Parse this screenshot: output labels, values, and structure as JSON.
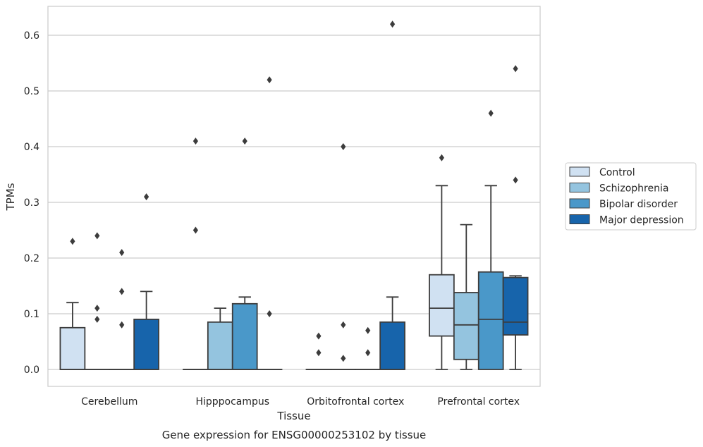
{
  "caption": "Gene expression for ENSG00000253102 by tissue",
  "chart_data": {
    "type": "boxplot",
    "title": "",
    "xlabel": "Tissue",
    "ylabel": "TPMs",
    "ylim": [
      -0.03,
      0.655
    ],
    "yticks": [
      0.0,
      0.1,
      0.2,
      0.3,
      0.4,
      0.5,
      0.6
    ],
    "ytick_labels": [
      "0.0",
      "0.1",
      "0.2",
      "0.3",
      "0.4",
      "0.5",
      "0.6"
    ],
    "grid": "horizontal",
    "legend_position": "right",
    "categories": [
      "Cerebellum",
      "Hipppocampus",
      "Orbitofrontal cortex",
      "Prefrontal cortex"
    ],
    "series": [
      {
        "name": "Control",
        "color": "#d0e1f2",
        "boxes": [
          {
            "q1": 0.0,
            "median": 0.0,
            "q3": 0.075,
            "whislo": 0.0,
            "whishi": 0.12,
            "fliers": [
              0.23
            ]
          },
          {
            "q1": 0.0,
            "median": 0.0,
            "q3": 0.0,
            "whislo": 0.0,
            "whishi": 0.0,
            "fliers": [
              0.41,
              0.25
            ]
          },
          {
            "q1": 0.0,
            "median": 0.0,
            "q3": 0.0,
            "whislo": 0.0,
            "whishi": 0.0,
            "fliers": [
              0.06,
              0.03
            ]
          },
          {
            "q1": 0.06,
            "median": 0.11,
            "q3": 0.17,
            "whislo": 0.0,
            "whishi": 0.33,
            "fliers": [
              0.38
            ]
          }
        ]
      },
      {
        "name": "Schizophrenia",
        "color": "#94c4df",
        "boxes": [
          {
            "q1": 0.0,
            "median": 0.0,
            "q3": 0.0,
            "whislo": 0.0,
            "whishi": 0.0,
            "fliers": [
              0.24,
              0.11,
              0.09
            ]
          },
          {
            "q1": 0.0,
            "median": 0.0,
            "q3": 0.085,
            "whislo": 0.0,
            "whishi": 0.11,
            "fliers": []
          },
          {
            "q1": 0.0,
            "median": 0.0,
            "q3": 0.0,
            "whislo": 0.0,
            "whishi": 0.0,
            "fliers": [
              0.4,
              0.08,
              0.02
            ]
          },
          {
            "q1": 0.018,
            "median": 0.08,
            "q3": 0.138,
            "whislo": 0.0,
            "whishi": 0.26,
            "fliers": []
          }
        ]
      },
      {
        "name": "Bipolar disorder",
        "color": "#4a98c9",
        "boxes": [
          {
            "q1": 0.0,
            "median": 0.0,
            "q3": 0.0,
            "whislo": 0.0,
            "whishi": 0.0,
            "fliers": [
              0.21,
              0.14,
              0.08
            ]
          },
          {
            "q1": 0.0,
            "median": 0.0,
            "q3": 0.118,
            "whislo": 0.0,
            "whishi": 0.13,
            "fliers": [
              0.41
            ]
          },
          {
            "q1": 0.0,
            "median": 0.0,
            "q3": 0.0,
            "whislo": 0.0,
            "whishi": 0.0,
            "fliers": [
              0.07,
              0.03
            ]
          },
          {
            "q1": 0.0,
            "median": 0.09,
            "q3": 0.175,
            "whislo": 0.0,
            "whishi": 0.33,
            "fliers": [
              0.46
            ]
          }
        ]
      },
      {
        "name": "Major depression",
        "color": "#1764ab",
        "boxes": [
          {
            "q1": 0.0,
            "median": 0.0,
            "q3": 0.09,
            "whislo": 0.0,
            "whishi": 0.14,
            "fliers": [
              0.31
            ]
          },
          {
            "q1": 0.0,
            "median": 0.0,
            "q3": 0.0,
            "whislo": 0.0,
            "whishi": 0.0,
            "fliers": [
              0.52,
              0.1
            ]
          },
          {
            "q1": 0.0,
            "median": 0.0,
            "q3": 0.085,
            "whislo": 0.0,
            "whishi": 0.13,
            "fliers": [
              0.62
            ]
          },
          {
            "q1": 0.062,
            "median": 0.085,
            "q3": 0.165,
            "whislo": 0.0,
            "whishi": 0.168,
            "fliers": [
              0.54,
              0.34
            ]
          }
        ]
      }
    ]
  }
}
